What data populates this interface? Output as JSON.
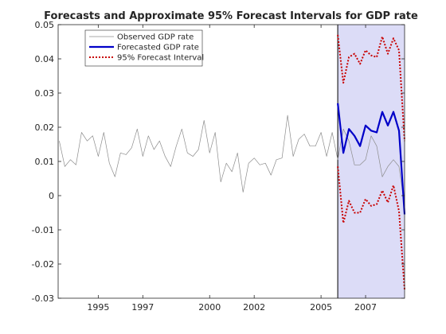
{
  "chart_data": {
    "type": "line",
    "title": "Forecasts and Approximate 95%  Forecast Intervals for GDP rate",
    "xlabel": "",
    "ylabel": "",
    "xlim": [
      1993.2,
      2008.75
    ],
    "ylim": [
      -0.03,
      0.05
    ],
    "x_ticks": [
      1995,
      1997,
      2000,
      2002,
      2005,
      2007
    ],
    "x_tick_labels": [
      "1995",
      "1997",
      "2000",
      "2002",
      "2005",
      "2007"
    ],
    "y_ticks": [
      -0.03,
      -0.02,
      -0.01,
      0,
      0.01,
      0.02,
      0.03,
      0.04,
      0.05
    ],
    "y_tick_labels": [
      "-0.03",
      "-0.02",
      "-0.01",
      "0",
      "0.01",
      "0.02",
      "0.03",
      "0.04",
      "0.05"
    ],
    "grid": false,
    "legend_position": "top-left",
    "forecast_region": {
      "start": 2005.75,
      "end": 2008.75,
      "color": "#dcdcf7"
    },
    "series": [
      {
        "name": "Observed GDP rate",
        "style": "solid-thin",
        "color": "#8c8c8c",
        "x": [
          1993.25,
          1993.5,
          1993.75,
          1994,
          1994.25,
          1994.5,
          1994.75,
          1995,
          1995.25,
          1995.5,
          1995.75,
          1996,
          1996.25,
          1996.5,
          1996.75,
          1997,
          1997.25,
          1997.5,
          1997.75,
          1998,
          1998.25,
          1998.5,
          1998.75,
          1999,
          1999.25,
          1999.5,
          1999.75,
          2000,
          2000.25,
          2000.5,
          2000.75,
          2001,
          2001.25,
          2001.5,
          2001.75,
          2002,
          2002.25,
          2002.5,
          2002.75,
          2003,
          2003.25,
          2003.5,
          2003.75,
          2004,
          2004.25,
          2004.5,
          2004.75,
          2005,
          2005.25,
          2005.5,
          2005.75,
          2006,
          2006.25,
          2006.5,
          2006.75,
          2007,
          2007.25,
          2007.5,
          2007.75,
          2008,
          2008.25,
          2008.5,
          2008.75
        ],
        "values": [
          0.016,
          0.0085,
          0.0105,
          0.009,
          0.0185,
          0.016,
          0.0175,
          0.0115,
          0.0185,
          0.0095,
          0.0055,
          0.0125,
          0.012,
          0.014,
          0.0195,
          0.0115,
          0.0175,
          0.0135,
          0.016,
          0.0115,
          0.0085,
          0.0145,
          0.0195,
          0.0125,
          0.0115,
          0.0135,
          0.022,
          0.0125,
          0.0185,
          0.004,
          0.0095,
          0.007,
          0.0125,
          0.001,
          0.0095,
          0.011,
          0.009,
          0.0095,
          0.006,
          0.0105,
          0.011,
          0.0235,
          0.0115,
          0.0165,
          0.018,
          0.0145,
          0.0145,
          0.0185,
          0.0115,
          0.0185,
          0.0105,
          0.0195,
          0.016,
          0.009,
          0.009,
          0.0105,
          0.0175,
          0.0145,
          0.0055,
          0.0085,
          0.0105,
          0.0085,
          -0.003
        ]
      },
      {
        "name": "Forecasted GDP rate",
        "style": "solid-thick",
        "color": "#0000c8",
        "x": [
          2005.75,
          2006,
          2006.25,
          2006.5,
          2006.75,
          2007,
          2007.25,
          2007.5,
          2007.75,
          2008,
          2008.25,
          2008.5,
          2008.75
        ],
        "values": [
          0.027,
          0.0125,
          0.0195,
          0.0175,
          0.0145,
          0.0205,
          0.019,
          0.0185,
          0.0245,
          0.0205,
          0.0245,
          0.019,
          -0.0055
        ]
      },
      {
        "name": "95% Forecast Interval",
        "style": "dotted",
        "color": "#c80000",
        "x": [
          2005.75,
          2006,
          2006.25,
          2006.5,
          2006.75,
          2007,
          2007.25,
          2007.5,
          2007.75,
          2008,
          2008.25,
          2008.5,
          2008.75
        ],
        "values": [
          0.047,
          0.033,
          0.0405,
          0.0415,
          0.0385,
          0.0425,
          0.041,
          0.0405,
          0.0465,
          0.0415,
          0.046,
          0.0425,
          0.016
        ]
      },
      {
        "name": "95% Forecast Interval",
        "style": "dotted",
        "color": "#c80000",
        "x": [
          2005.75,
          2006,
          2006.25,
          2006.5,
          2006.75,
          2007,
          2007.25,
          2007.5,
          2007.75,
          2008,
          2008.25,
          2008.5,
          2008.75
        ],
        "values": [
          0.0085,
          -0.008,
          -0.0015,
          -0.005,
          -0.005,
          -0.001,
          -0.003,
          -0.0025,
          0.0015,
          -0.002,
          0.003,
          -0.0045,
          -0.0275
        ]
      }
    ],
    "legend": [
      {
        "label": "Observed GDP rate",
        "color": "#8c8c8c",
        "style": "solid-thin"
      },
      {
        "label": "Forecasted GDP rate",
        "color": "#0000c8",
        "style": "solid-thick"
      },
      {
        "label": "95% Forecast Interval",
        "color": "#c80000",
        "style": "dotted"
      }
    ]
  }
}
